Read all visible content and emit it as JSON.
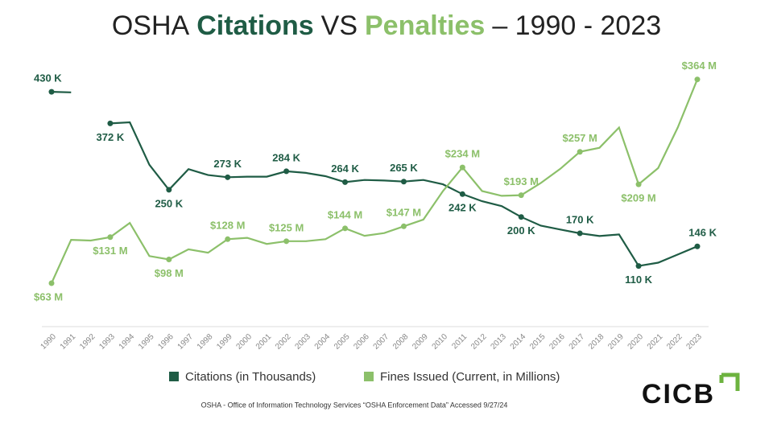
{
  "chart_data": {
    "type": "line",
    "title_parts": [
      "OSHA",
      "Citations",
      "VS",
      "Penalties",
      "– 1990 - 2023"
    ],
    "categories": [
      "1990",
      "1991",
      "1992",
      "1993",
      "1994",
      "1995",
      "1996",
      "1997",
      "1998",
      "1999",
      "2000",
      "2001",
      "2002",
      "2003",
      "2004",
      "2005",
      "2006",
      "2007",
      "2008",
      "2009",
      "2010",
      "2011",
      "2012",
      "2013",
      "2014",
      "2015",
      "2016",
      "2017",
      "2018",
      "2019",
      "2020",
      "2021",
      "2022",
      "2023"
    ],
    "ylim": [
      0,
      510
    ],
    "y2lim": [
      0,
      410
    ],
    "series": [
      {
        "name": "Citations (in Thousands)",
        "color": "#1f5c45",
        "values": [
          430,
          429,
          null,
          372,
          374,
          296,
          250,
          288,
          277,
          273,
          274,
          274,
          284,
          281,
          275,
          264,
          268,
          267,
          265,
          268,
          260,
          242,
          229,
          220,
          200,
          184,
          177,
          170,
          165,
          168,
          110,
          116,
          131,
          146
        ],
        "value_labels": [
          "430 K",
          null,
          null,
          "372 K",
          null,
          null,
          "250 K",
          null,
          null,
          "273 K",
          null,
          null,
          "284 K",
          null,
          null,
          "264 K",
          null,
          null,
          "265 K",
          null,
          null,
          "242 K",
          null,
          null,
          "200 K",
          null,
          null,
          "170 K",
          null,
          null,
          "110 K",
          null,
          null,
          "146 K"
        ]
      },
      {
        "name": "Fines Issued (Current, in Millions)",
        "color": "#8cc06a",
        "axis": "y2",
        "values": [
          63,
          127,
          126,
          131,
          152,
          103,
          98,
          113,
          108,
          128,
          130,
          121,
          125,
          125,
          128,
          144,
          133,
          137,
          147,
          157,
          199,
          234,
          199,
          192,
          193,
          211,
          232,
          257,
          263,
          293,
          209,
          233,
          293,
          364
        ],
        "value_labels": [
          "$63 M",
          null,
          null,
          "$131 M",
          null,
          null,
          "$98 M",
          null,
          null,
          "$128 M",
          null,
          null,
          "$125 M",
          null,
          null,
          "$144 M",
          null,
          null,
          "$147 M",
          null,
          null,
          "$234 M",
          null,
          null,
          "$193 M",
          null,
          null,
          "$257 M",
          null,
          null,
          "$209 M",
          null,
          null,
          "$364 M"
        ]
      }
    ],
    "source": "OSHA - Office of Information Technology Services “OSHA Enforcement Data” Accessed 9/27/24",
    "logo": "CICB"
  }
}
